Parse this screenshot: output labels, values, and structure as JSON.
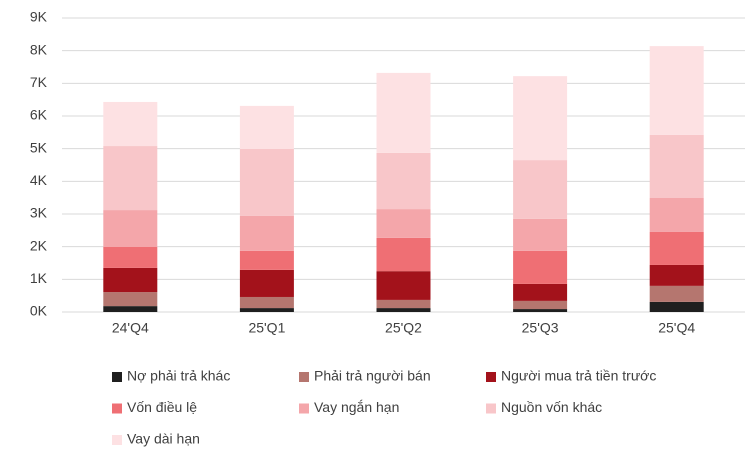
{
  "chart_data": {
    "type": "stacked_bar",
    "categories": [
      "24'Q4",
      "25'Q1",
      "25'Q2",
      "25'Q3",
      "25'Q4"
    ],
    "series": [
      {
        "name": "Nợ phải trả khác",
        "color": "#1f1f1f",
        "values": [
          0.18,
          0.12,
          0.12,
          0.09,
          0.31
        ]
      },
      {
        "name": "Phải trả người bán",
        "color": "#b5766f",
        "values": [
          0.43,
          0.34,
          0.25,
          0.25,
          0.49
        ]
      },
      {
        "name": "Người mua trả tiền trước",
        "color": "#a3121b",
        "values": [
          0.74,
          0.83,
          0.88,
          0.52,
          0.64
        ]
      },
      {
        "name": "Vốn điều lệ",
        "color": "#ef6f74",
        "values": [
          0.64,
          0.58,
          1.02,
          1.01,
          1.01
        ]
      },
      {
        "name": "Vay ngắn hạn",
        "color": "#f4a6aa",
        "values": [
          1.13,
          1.07,
          0.88,
          0.98,
          1.04
        ]
      },
      {
        "name": "Nguồn vốn khác",
        "color": "#f8c6c9",
        "values": [
          1.96,
          2.05,
          1.72,
          1.8,
          1.93
        ]
      },
      {
        "name": "Vay dài hạn",
        "color": "#fde1e3",
        "values": [
          1.35,
          1.32,
          2.45,
          2.57,
          2.72
        ]
      }
    ],
    "ylim": [
      0,
      9
    ],
    "yticks": [
      {
        "value": 0,
        "label": "0K"
      },
      {
        "value": 1,
        "label": "1K"
      },
      {
        "value": 2,
        "label": "2K"
      },
      {
        "value": 3,
        "label": "3K"
      },
      {
        "value": 4,
        "label": "4K"
      },
      {
        "value": 5,
        "label": "5K"
      },
      {
        "value": 6,
        "label": "6K"
      },
      {
        "value": 7,
        "label": "7K"
      },
      {
        "value": 8,
        "label": "8K"
      },
      {
        "value": 9,
        "label": "9K"
      }
    ],
    "grid": true
  }
}
